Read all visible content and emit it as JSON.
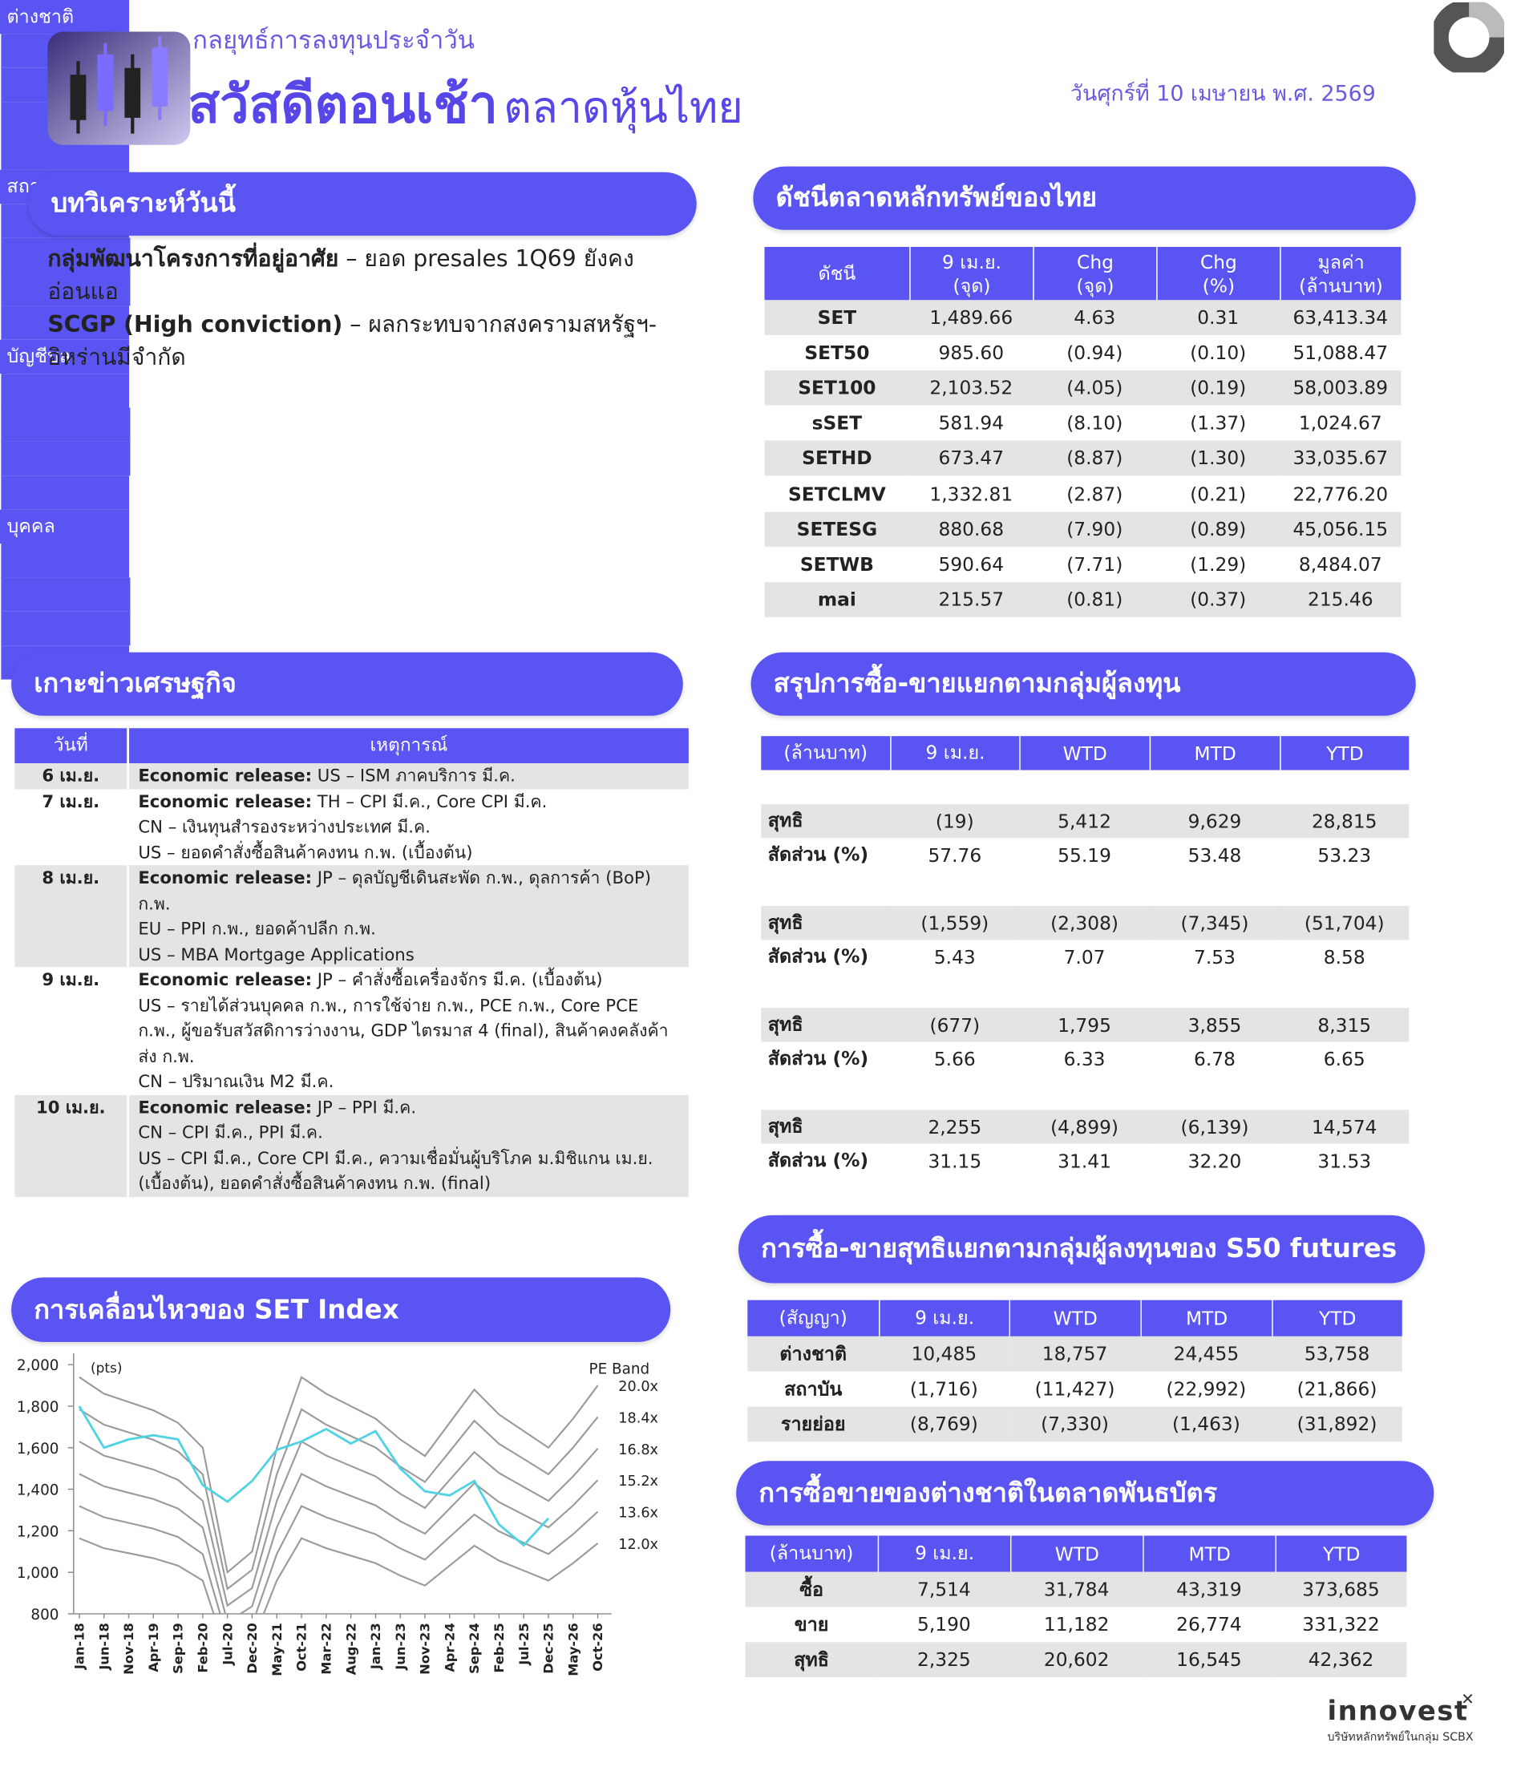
{
  "header": {
    "kicker": "กลยุทธ์การลงทุนประจำวัน",
    "title": "สวัสดีตอนเช้า",
    "title_suffix": "ตลาดหุ้นไทย",
    "date": "วันศุกร์ที่ 10 เมษายน พ.ศ. 2569"
  },
  "analysis": {
    "heading": "บทวิเคราะห์วันนี้",
    "items": [
      {
        "title": "กลุ่มพัฒนาโครงการที่อยู่อาศัย",
        "text": "– ยอด presales 1Q69 ยังคงอ่อนแอ"
      },
      {
        "title": "SCGP (High conviction)",
        "text": "– ผลกระทบจากสงครามสหรัฐฯ-อิหร่านมีจำกัด"
      }
    ]
  },
  "index_table": {
    "heading": "ดัชนีตลาดหลักทรัพย์ของไทย",
    "columns": [
      [
        "ดัชนี"
      ],
      [
        "9 เม.ย.",
        "(จุด)"
      ],
      [
        "Chg",
        "(จุด)"
      ],
      [
        "Chg",
        "(%)"
      ],
      [
        "มูลค่า",
        "(ล้านบาท)"
      ]
    ],
    "rows": [
      [
        "SET",
        "1,489.66",
        "4.63",
        "0.31",
        "63,413.34"
      ],
      [
        "SET50",
        "985.60",
        "(0.94)",
        "(0.10)",
        "51,088.47"
      ],
      [
        "SET100",
        "2,103.52",
        "(4.05)",
        "(0.19)",
        "58,003.89"
      ],
      [
        "sSET",
        "581.94",
        "(8.10)",
        "(1.37)",
        "1,024.67"
      ],
      [
        "SETHD",
        "673.47",
        "(8.87)",
        "(1.30)",
        "33,035.67"
      ],
      [
        "SETCLMV",
        "1,332.81",
        "(2.87)",
        "(0.21)",
        "22,776.20"
      ],
      [
        "SETESG",
        "880.68",
        "(7.90)",
        "(0.89)",
        "45,056.15"
      ],
      [
        "SETWB",
        "590.64",
        "(7.71)",
        "(1.29)",
        "8,484.07"
      ],
      [
        "mai",
        "215.57",
        "(0.81)",
        "(0.37)",
        "215.46"
      ]
    ]
  },
  "news": {
    "heading": "เกาะข่าวเศรษฐกิจ",
    "columns": [
      "วันที่",
      "เหตุการณ์"
    ],
    "rows": [
      {
        "date": "6 เม.ย.",
        "label": "Economic release:",
        "lines": [
          "US – ISM ภาคบริการ มี.ค."
        ]
      },
      {
        "date": "7 เม.ย.",
        "label": "Economic release:",
        "lines": [
          "TH – CPI มี.ค., Core CPI มี.ค.",
          "CN – เงินทุนสำรองระหว่างประเทศ มี.ค.",
          "US – ยอดคำสั่งซื้อสินค้าคงทน ก.พ. (เบื้องต้น)"
        ]
      },
      {
        "date": "8 เม.ย.",
        "label": "Economic release:",
        "lines": [
          "JP – ดุลบัญชีเดินสะพัด ก.พ., ดุลการค้า (BoP) ก.พ.",
          "EU – PPI ก.พ., ยอดค้าปลีก ก.พ.",
          "US – MBA Mortgage Applications"
        ]
      },
      {
        "date": "9 เม.ย.",
        "label": "Economic release:",
        "lines": [
          "JP – คำสั่งซื้อเครื่องจักร มี.ค. (เบื้องต้น)",
          "US – รายได้ส่วนบุคคล ก.พ., การใช้จ่าย ก.พ., PCE ก.พ., Core PCE ก.พ., ผู้ขอรับสวัสดิการว่างงาน, GDP ไตรมาส 4 (final), สินค้าคงคลังค้าส่ง ก.พ.",
          "CN – ปริมาณเงิน M2 มี.ค."
        ]
      },
      {
        "date": "10 เม.ย.",
        "label": "Economic release:",
        "lines": [
          "JP – PPI มี.ค.",
          "CN – CPI มี.ค., PPI มี.ค.",
          "US – CPI มี.ค., Core CPI มี.ค., ความเชื่อมั่นผู้บริโภค ม.มิชิแกน เม.ย. (เบื้องต้น), ยอดคำสั่งซื้อสินค้าคงทน ก.พ. (final)"
        ]
      }
    ]
  },
  "flows": {
    "heading": "สรุปการซื้อ-ขายแยกตามกลุ่มผู้ลงทุน",
    "columns": [
      "(ล้านบาท)",
      "9 เม.ย.",
      "WTD",
      "MTD",
      "YTD"
    ],
    "groups": [
      {
        "name": "ต่างชาติ",
        "rows": [
          [
            "สุทธิ",
            "(19)",
            "5,412",
            "9,629",
            "28,815"
          ],
          [
            "สัดส่วน (%)",
            "57.76",
            "55.19",
            "53.48",
            "53.23"
          ]
        ]
      },
      {
        "name": "สถาบันฯ",
        "rows": [
          [
            "สุทธิ",
            "(1,559)",
            "(2,308)",
            "(7,345)",
            "(51,704)"
          ],
          [
            "สัดส่วน (%)",
            "5.43",
            "7.07",
            "7.53",
            "8.58"
          ]
        ]
      },
      {
        "name": "บัญชีบล.",
        "rows": [
          [
            "สุทธิ",
            "(677)",
            "1,795",
            "3,855",
            "8,315"
          ],
          [
            "สัดส่วน (%)",
            "5.66",
            "6.33",
            "6.78",
            "6.65"
          ]
        ]
      },
      {
        "name": "บุคคล",
        "rows": [
          [
            "สุทธิ",
            "2,255",
            "(4,899)",
            "(6,139)",
            "14,574"
          ],
          [
            "สัดส่วน (%)",
            "31.15",
            "31.41",
            "32.20",
            "31.53"
          ]
        ]
      }
    ]
  },
  "futures": {
    "heading": "การซื้อ-ขายสุทธิแยกตามกลุ่มผู้ลงทุนของ S50 futures",
    "columns": [
      "(สัญญา)",
      "9 เม.ย.",
      "WTD",
      "MTD",
      "YTD"
    ],
    "rows": [
      [
        "ต่างชาติ",
        "10,485",
        "18,757",
        "24,455",
        "53,758"
      ],
      [
        "สถาบัน",
        "(1,716)",
        "(11,427)",
        "(22,992)",
        "(21,866)"
      ],
      [
        "รายย่อย",
        "(8,769)",
        "(7,330)",
        "(1,463)",
        "(31,892)"
      ]
    ]
  },
  "bonds": {
    "heading": "การซื้อขายของต่างชาติในตลาดพันธบัตร",
    "columns": [
      "(ล้านบาท)",
      "9 เม.ย.",
      "WTD",
      "MTD",
      "YTD"
    ],
    "rows": [
      [
        "ซื้อ",
        "7,514",
        "31,784",
        "43,319",
        "373,685"
      ],
      [
        "ขาย",
        "5,190",
        "11,182",
        "26,774",
        "331,322"
      ],
      [
        "สุทธิ",
        "2,325",
        "20,602",
        "16,545",
        "42,362"
      ]
    ]
  },
  "set_chart": {
    "heading": "การเคลื่อนไหวของ SET Index",
    "chart": {
      "type": "line",
      "y_label": "(pts)",
      "legend_title": "PE Band",
      "x": [
        "Jan-18",
        "Jun-18",
        "Nov-18",
        "Apr-19",
        "Sep-19",
        "Feb-20",
        "Jul-20",
        "Dec-20",
        "May-21",
        "Oct-21",
        "Mar-22",
        "Aug-22",
        "Jan-23",
        "Jun-23",
        "Nov-23",
        "Apr-24",
        "Sep-24",
        "Feb-25",
        "Jul-25",
        "Dec-25",
        "May-26",
        "Oct-26"
      ],
      "ylim": [
        800,
        2000
      ],
      "yticks": [
        {
          "value": 800,
          "label": "800"
        },
        {
          "value": 1000,
          "label": "1,000"
        },
        {
          "value": 1200,
          "label": "1,200"
        },
        {
          "value": 1400,
          "label": "1,400"
        },
        {
          "value": 1600,
          "label": "1,600"
        },
        {
          "value": 1800,
          "label": "1,800"
        },
        {
          "value": 2000,
          "label": "2,000"
        }
      ],
      "index": {
        "color": "#4fd3e3",
        "values": [
          1800,
          1600,
          1640,
          1660,
          1640,
          1420,
          1340,
          1440,
          1590,
          1630,
          1690,
          1620,
          1680,
          1500,
          1390,
          1370,
          1440,
          1230,
          1130,
          1260,
          null,
          null
        ]
      },
      "series": [
        {
          "name": "20.0x",
          "color": "#9a9a9a",
          "values": [
            1940,
            1860,
            1820,
            1780,
            1720,
            1600,
            1000,
            1100,
            1600,
            1940,
            1860,
            1800,
            1740,
            1640,
            1560,
            1720,
            1880,
            1760,
            1680,
            1600,
            1740,
            1900
          ]
        },
        {
          "name": "18.4x",
          "color": "#9a9a9a",
          "values": [
            1785,
            1711,
            1674,
            1638,
            1582,
            1472,
            920,
            1012,
            1472,
            1785,
            1711,
            1656,
            1601,
            1509,
            1435,
            1582,
            1730,
            1619,
            1546,
            1472,
            1601,
            1748
          ]
        },
        {
          "name": "16.8x",
          "color": "#9a9a9a",
          "values": [
            1630,
            1562,
            1529,
            1495,
            1445,
            1344,
            840,
            924,
            1344,
            1630,
            1562,
            1512,
            1462,
            1378,
            1310,
            1445,
            1579,
            1478,
            1411,
            1344,
            1462,
            1596
          ]
        },
        {
          "name": "15.2x",
          "color": "#9a9a9a",
          "values": [
            1474,
            1414,
            1383,
            1353,
            1307,
            1216,
            760,
            836,
            1216,
            1474,
            1414,
            1368,
            1322,
            1246,
            1186,
            1307,
            1429,
            1338,
            1277,
            1216,
            1322,
            1444
          ]
        },
        {
          "name": "13.6x",
          "color": "#9a9a9a",
          "values": [
            1319,
            1265,
            1238,
            1210,
            1170,
            1088,
            680,
            748,
            1088,
            1319,
            1265,
            1224,
            1183,
            1115,
            1061,
            1170,
            1278,
            1197,
            1142,
            1088,
            1183,
            1292
          ]
        },
        {
          "name": "12.0x",
          "color": "#9a9a9a",
          "values": [
            1164,
            1116,
            1092,
            1068,
            1032,
            960,
            600,
            660,
            960,
            1164,
            1116,
            1080,
            1044,
            984,
            936,
            1032,
            1128,
            1056,
            1008,
            960,
            1044,
            1140
          ]
        }
      ]
    }
  },
  "footer": {
    "brand": "innovest",
    "tagline": "บริษัทหลักทรัพย์ในกลุ่ม SCBX"
  }
}
